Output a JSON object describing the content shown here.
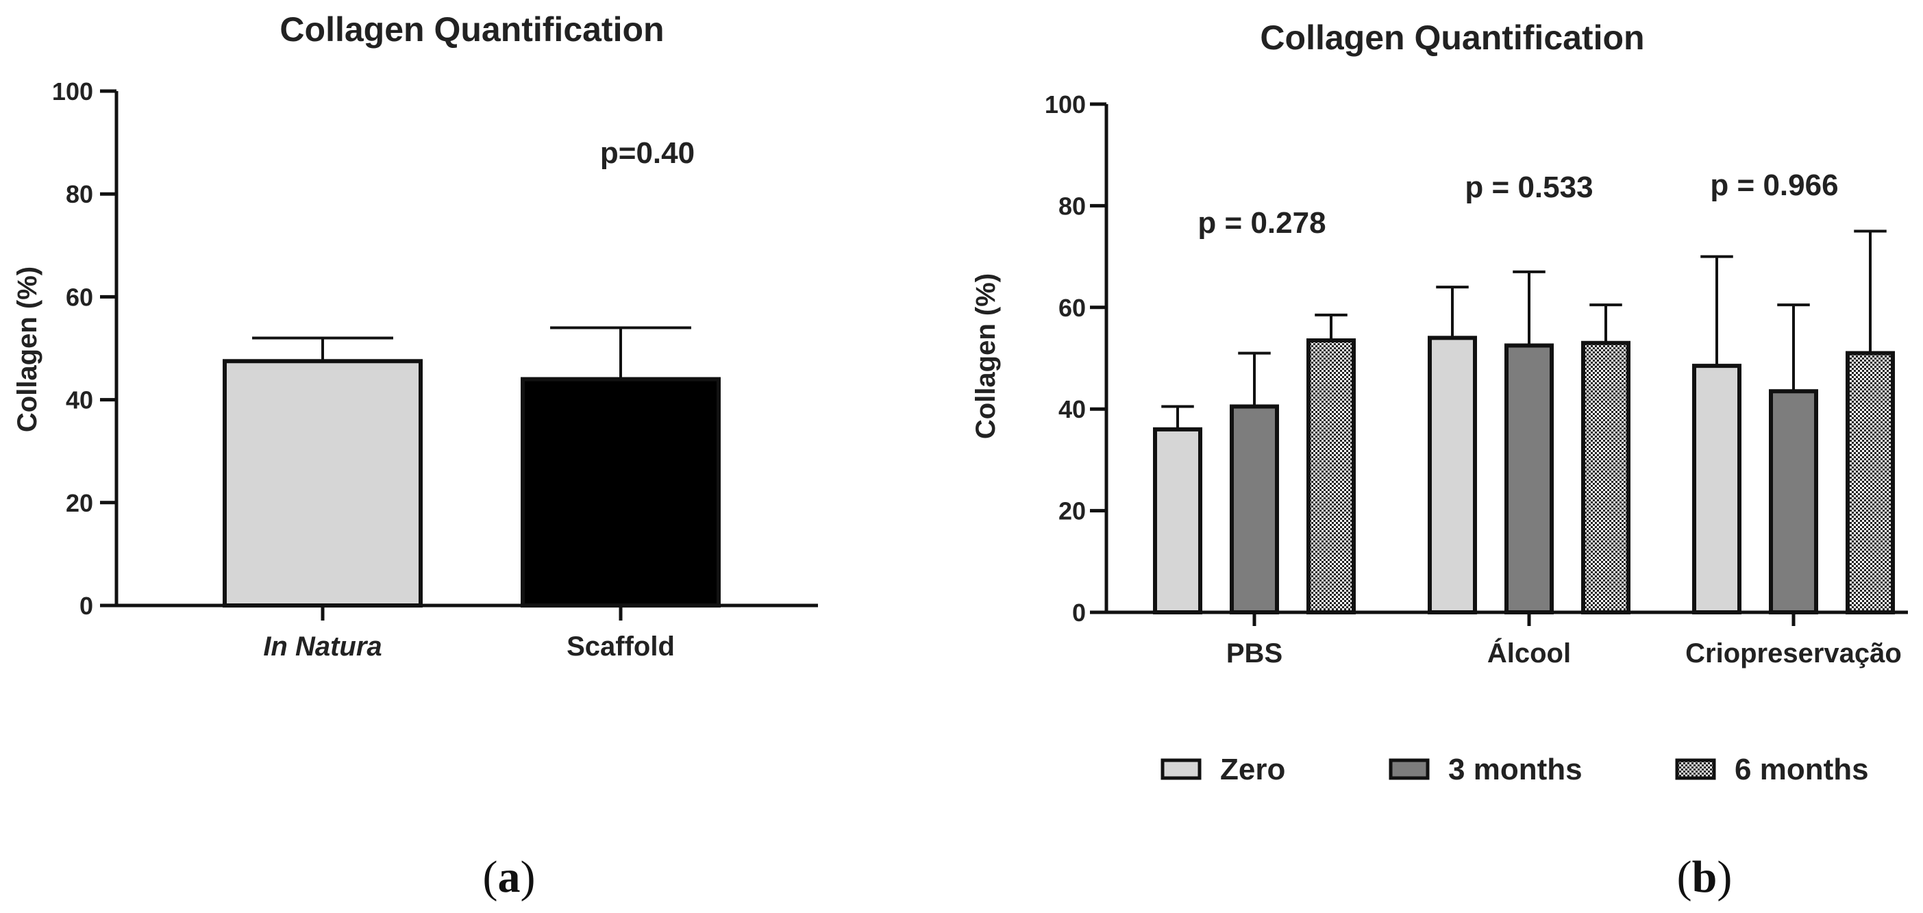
{
  "colors": {
    "zero": "#d6d6d6",
    "three_months": "#7d7d7d",
    "scaffold": "#000000",
    "in_natura": "#d6d6d6",
    "axis": "#111111"
  },
  "chart_data": [
    {
      "panel_label": "a",
      "type": "bar",
      "title": "Collagen Quantification",
      "xlabel": "",
      "ylabel": "Collagen (%)",
      "ylim": [
        0,
        100
      ],
      "yticks": [
        "0",
        "20",
        "40",
        "60",
        "80",
        "100"
      ],
      "categories": [
        "In Natura",
        "Scaffold"
      ],
      "values": [
        47.5,
        44
      ],
      "errors": [
        4.5,
        10
      ],
      "fills": [
        "light-gray",
        "black"
      ],
      "annotations": [
        {
          "text": "p=0.40"
        }
      ]
    },
    {
      "panel_label": "b",
      "type": "bar",
      "title": "Collagen Quantification",
      "xlabel": "",
      "ylabel": "Collagen (%)",
      "ylim": [
        0,
        100
      ],
      "yticks": [
        "0",
        "20",
        "40",
        "60",
        "80",
        "100"
      ],
      "categories": [
        "PBS",
        "Álcool",
        "Criopreservação"
      ],
      "series": [
        {
          "name": "Zero",
          "pattern": "light-gray",
          "values": [
            36,
            54,
            48.5
          ],
          "errors": [
            4.5,
            10,
            21.5
          ]
        },
        {
          "name": "3 months",
          "pattern": "dark-gray",
          "values": [
            40.5,
            52.5,
            43.5
          ],
          "errors": [
            10.5,
            14.5,
            17
          ]
        },
        {
          "name": "6 months",
          "pattern": "checkered",
          "values": [
            53.5,
            53,
            51
          ],
          "errors": [
            5,
            7.5,
            24
          ]
        }
      ],
      "annotations": [
        {
          "text": "p = 0.278"
        },
        {
          "text": "p = 0.533"
        },
        {
          "text": "p = 0.966"
        }
      ],
      "legend_position": "bottom"
    }
  ]
}
